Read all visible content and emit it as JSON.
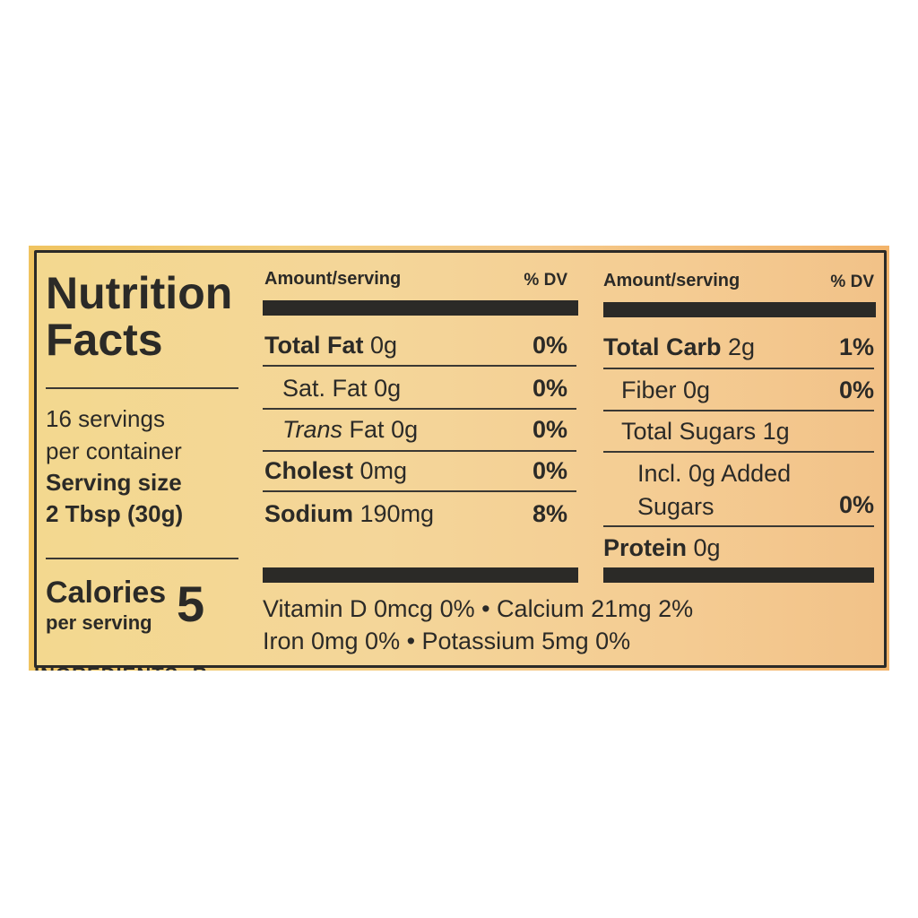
{
  "title": [
    "Nutrition",
    "Facts"
  ],
  "servings": {
    "count": "16 servings",
    "per": "per container",
    "size_label": "Serving size",
    "size_value": "2 Tbsp (30g)"
  },
  "calories": {
    "label": "Calories",
    "per": "per serving",
    "value": "5"
  },
  "header": {
    "amount": "Amount/serving",
    "dv": "% DV"
  },
  "left_rows": [
    {
      "name": "Total Fat",
      "amount": "0g",
      "dv": "0%"
    },
    {
      "name": "Sat. Fat",
      "amount": "0g",
      "dv": "0%"
    },
    {
      "name": "Trans",
      "name2": "Fat",
      "amount": "0g",
      "dv": "0%"
    },
    {
      "name": "Cholest",
      "amount": "0mg",
      "dv": "0%"
    },
    {
      "name": "Sodium",
      "amount": "190mg",
      "dv": "8%"
    }
  ],
  "right_rows": [
    {
      "name": "Total Carb",
      "amount": "2g",
      "dv": "1%"
    },
    {
      "name": "Fiber 0g",
      "dv": "0%"
    },
    {
      "name": "Total Sugars 1g"
    },
    {
      "name": "Incl. 0g Added",
      "name2": "Sugars",
      "dv": "0%"
    },
    {
      "name": "Protein",
      "amount": "0g"
    }
  ],
  "micros": [
    "Vitamin D 0mcg 0% • Calcium 21mg 2%",
    "Iron 0mg 0% • Potassium 5mg  0%"
  ],
  "ingredients_cut": "INGREDIENTS: R",
  "colors": {
    "ink": "#2b2a27",
    "label_bg": "#f3d48f",
    "outer": "#f0c460"
  }
}
